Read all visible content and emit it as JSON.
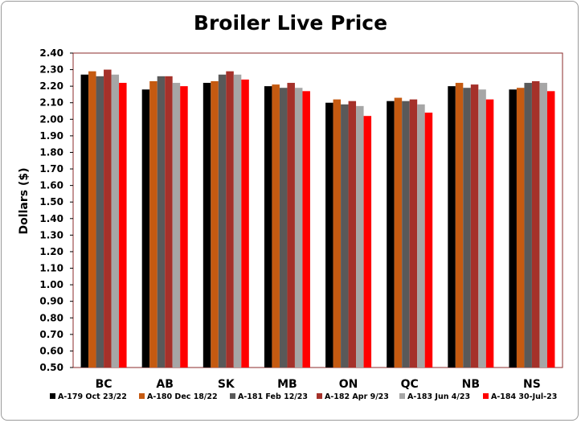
{
  "chart_data": {
    "type": "bar",
    "title": "Broiler Live Price",
    "ylabel": "Dollars ($)",
    "xlabel": "",
    "ylim": [
      0.5,
      2.4
    ],
    "yticks": [
      "0.50",
      "0.60",
      "0.70",
      "0.80",
      "0.90",
      "1.00",
      "1.10",
      "1.20",
      "1.30",
      "1.40",
      "1.50",
      "1.60",
      "1.70",
      "1.80",
      "1.90",
      "2.00",
      "2.10",
      "2.20",
      "2.30",
      "2.40"
    ],
    "categories": [
      "BC",
      "AB",
      "SK",
      "MB",
      "ON",
      "QC",
      "NB",
      "NS"
    ],
    "legend_position": "bottom",
    "grid": false,
    "series": [
      {
        "name": "A-179 Oct 23/22",
        "color": "#000000",
        "values": [
          2.27,
          2.18,
          2.22,
          2.2,
          2.1,
          2.11,
          2.2,
          2.18
        ]
      },
      {
        "name": "A-180 Dec 18/22",
        "color": "#c55a11",
        "values": [
          2.29,
          2.23,
          2.23,
          2.21,
          2.12,
          2.13,
          2.22,
          2.19
        ]
      },
      {
        "name": "A-181 Feb 12/23",
        "color": "#595959",
        "values": [
          2.26,
          2.26,
          2.27,
          2.19,
          2.09,
          2.11,
          2.19,
          2.22
        ]
      },
      {
        "name": "A-182 Apr 9/23",
        "color": "#a5312a",
        "values": [
          2.3,
          2.26,
          2.29,
          2.22,
          2.11,
          2.12,
          2.21,
          2.23
        ]
      },
      {
        "name": "A-183 Jun 4/23",
        "color": "#a6a6a6",
        "values": [
          2.27,
          2.22,
          2.27,
          2.19,
          2.08,
          2.09,
          2.18,
          2.22
        ]
      },
      {
        "name": "A-184 30-Jul-23",
        "color": "#ff0000",
        "values": [
          2.22,
          2.2,
          2.24,
          2.17,
          2.02,
          2.04,
          2.12,
          2.17
        ]
      }
    ]
  }
}
